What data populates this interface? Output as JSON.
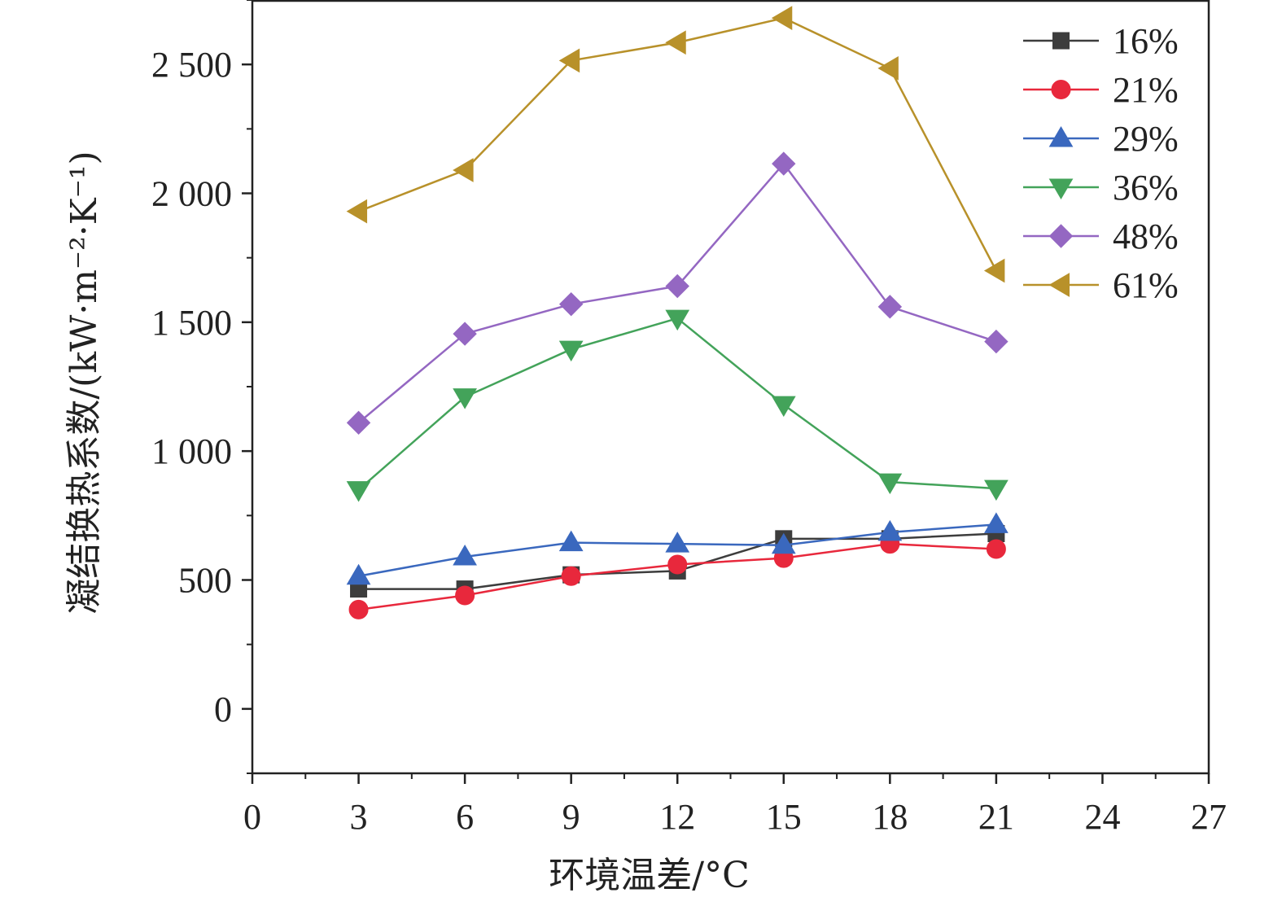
{
  "chart_data": {
    "type": "line",
    "xlabel": "环境温差/°C",
    "ylabel": "凝结换热系数/(kW·m⁻²·K⁻¹)",
    "xlim": [
      0,
      27
    ],
    "ylim": [
      -250,
      2750
    ],
    "x_ticks": [
      0,
      3,
      6,
      9,
      12,
      15,
      18,
      21,
      24,
      27
    ],
    "x_tick_labels": [
      "0",
      "3",
      "6",
      "9",
      "12",
      "15",
      "18",
      "21",
      "24",
      "27"
    ],
    "y_ticks": [
      0,
      500,
      1000,
      1500,
      2000,
      2500
    ],
    "y_tick_labels": [
      "0",
      "500",
      "1 000",
      "1 500",
      "2 000",
      "2 500"
    ],
    "grid": false,
    "legend_position": "top-right",
    "x": [
      3,
      6,
      9,
      12,
      15,
      18,
      21
    ],
    "series": [
      {
        "name": "16%",
        "color": "#3d3d3d",
        "marker": "square",
        "values": [
          465,
          465,
          520,
          535,
          660,
          660,
          680
        ]
      },
      {
        "name": "21%",
        "color": "#e8283c",
        "marker": "circle",
        "values": [
          385,
          440,
          515,
          560,
          585,
          640,
          620
        ]
      },
      {
        "name": "29%",
        "color": "#3a68be",
        "marker": "triangle-up",
        "values": [
          515,
          590,
          645,
          640,
          635,
          685,
          715
        ]
      },
      {
        "name": "36%",
        "color": "#43a35a",
        "marker": "triangle-down",
        "values": [
          850,
          1210,
          1395,
          1515,
          1180,
          880,
          855
        ]
      },
      {
        "name": "48%",
        "color": "#9467c2",
        "marker": "diamond",
        "values": [
          1110,
          1455,
          1570,
          1640,
          2115,
          1560,
          1425
        ]
      },
      {
        "name": "61%",
        "color": "#b8912a",
        "marker": "triangle-left",
        "values": [
          1930,
          2090,
          2515,
          2585,
          2680,
          2485,
          1700
        ]
      }
    ]
  }
}
